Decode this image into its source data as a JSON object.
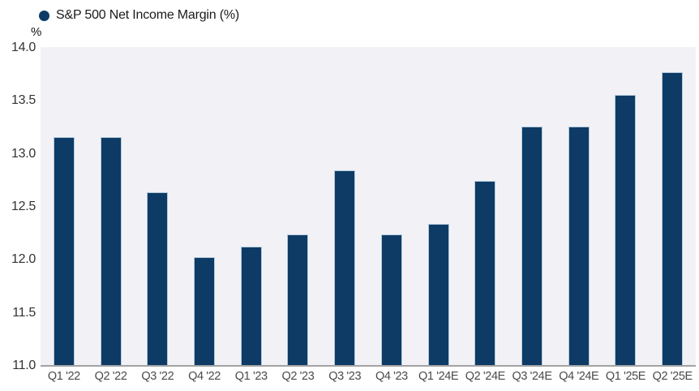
{
  "legend": {
    "label": "S&P 500 Net Income Margin (%)",
    "marker_color": "#0d3b66"
  },
  "chart_data": {
    "type": "bar",
    "title": "S&P 500 Net Income Margin (%)",
    "xlabel": "",
    "ylabel": "%",
    "categories": [
      "Q1 '22",
      "Q2 '22",
      "Q3 '22",
      "Q4 '22",
      "Q1 '23",
      "Q2 '23",
      "Q3 '23",
      "Q4 '23",
      "Q1 '24E",
      "Q2 '24E",
      "Q3 '24E",
      "Q4 '24E",
      "Q1 '25E",
      "Q2 '25E"
    ],
    "values": [
      13.15,
      13.15,
      12.63,
      12.02,
      12.12,
      12.23,
      12.84,
      12.23,
      12.33,
      12.74,
      13.25,
      13.25,
      13.55,
      13.76
    ],
    "ylim": [
      11.0,
      14.0
    ],
    "ytick_labels": [
      "14.0",
      "13.5",
      "13.0",
      "12.5",
      "12.0",
      "11.5",
      "11.0"
    ],
    "grid": false,
    "legend_position": "top-left",
    "bar_color": "#0d3b66",
    "bar_border_color": "#b3c9da",
    "plot_background": "#f2f2f6",
    "axis_line_color": "#a3a3a3",
    "tick_label_color": "#4a4a4a"
  }
}
